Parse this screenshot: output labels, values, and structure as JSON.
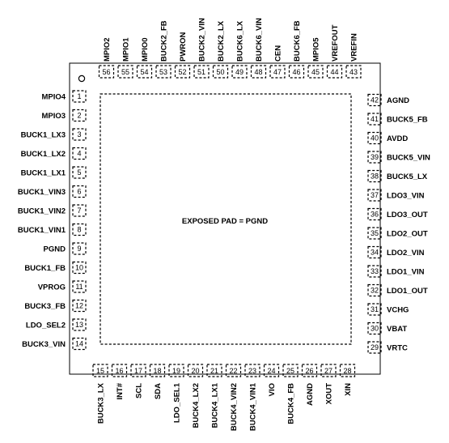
{
  "package": {
    "exposed_pad_label": "EXPOSED PAD = PGND",
    "left_pins": [
      [
        "1",
        "MPIO4"
      ],
      [
        "2",
        "MPIO3"
      ],
      [
        "3",
        "BUCK1_LX3"
      ],
      [
        "4",
        "BUCK1_LX2"
      ],
      [
        "5",
        "BUCK1_LX1"
      ],
      [
        "6",
        "BUCK1_VIN3"
      ],
      [
        "7",
        "BUCK1_VIN2"
      ],
      [
        "8",
        "BUCK1_VIN1"
      ],
      [
        "9",
        "PGND"
      ],
      [
        "10",
        "BUCK1_FB"
      ],
      [
        "11",
        "VPROG"
      ],
      [
        "12",
        "BUCK3_FB"
      ],
      [
        "13",
        "LDO_SEL2"
      ],
      [
        "14",
        "BUCK3_VIN"
      ]
    ],
    "bottom_pins": [
      [
        "15",
        "BUCK3_LX"
      ],
      [
        "16",
        "INT#"
      ],
      [
        "17",
        "SCL"
      ],
      [
        "18",
        "SDA"
      ],
      [
        "19",
        "LDO_SEL1"
      ],
      [
        "20",
        "BUCK4_LX2"
      ],
      [
        "21",
        "BUCK4_LX1"
      ],
      [
        "22",
        "BUCK4_VIN2"
      ],
      [
        "23",
        "BUCK4_VIN1"
      ],
      [
        "24",
        "VIO"
      ],
      [
        "25",
        "BUCK4_FB"
      ],
      [
        "26",
        "AGND"
      ],
      [
        "27",
        "XOUT"
      ],
      [
        "28",
        "XIN"
      ]
    ],
    "right_pins": [
      [
        "29",
        "VRTC"
      ],
      [
        "30",
        "VBAT"
      ],
      [
        "31",
        "VCHG"
      ],
      [
        "32",
        "LDO1_OUT"
      ],
      [
        "33",
        "LDO1_VIN"
      ],
      [
        "34",
        "LDO2_VIN"
      ],
      [
        "35",
        "LDO2_OUT"
      ],
      [
        "36",
        "LDO3_OUT"
      ],
      [
        "37",
        "LDO3_VIN"
      ],
      [
        "38",
        "BUCK5_LX"
      ],
      [
        "39",
        "BUCK5_VIN"
      ],
      [
        "40",
        "AVDD"
      ],
      [
        "41",
        "BUCK5_FB"
      ],
      [
        "42",
        "AGND"
      ]
    ],
    "top_pins": [
      [
        "43",
        "VREFIN"
      ],
      [
        "44",
        "VREFOUT"
      ],
      [
        "45",
        "MPIO5"
      ],
      [
        "46",
        "BUCK6_FB"
      ],
      [
        "47",
        "CEN"
      ],
      [
        "48",
        "BUCK6_VIN"
      ],
      [
        "49",
        "BUCK6_LX"
      ],
      [
        "50",
        "BUCK2_LX"
      ],
      [
        "51",
        "BUCK2_VIN"
      ],
      [
        "52",
        "PWRON"
      ],
      [
        "53",
        "BUCK2_FB"
      ],
      [
        "54",
        "MPIO0"
      ],
      [
        "55",
        "MPIO1"
      ],
      [
        "56",
        "MPIO2"
      ]
    ]
  }
}
